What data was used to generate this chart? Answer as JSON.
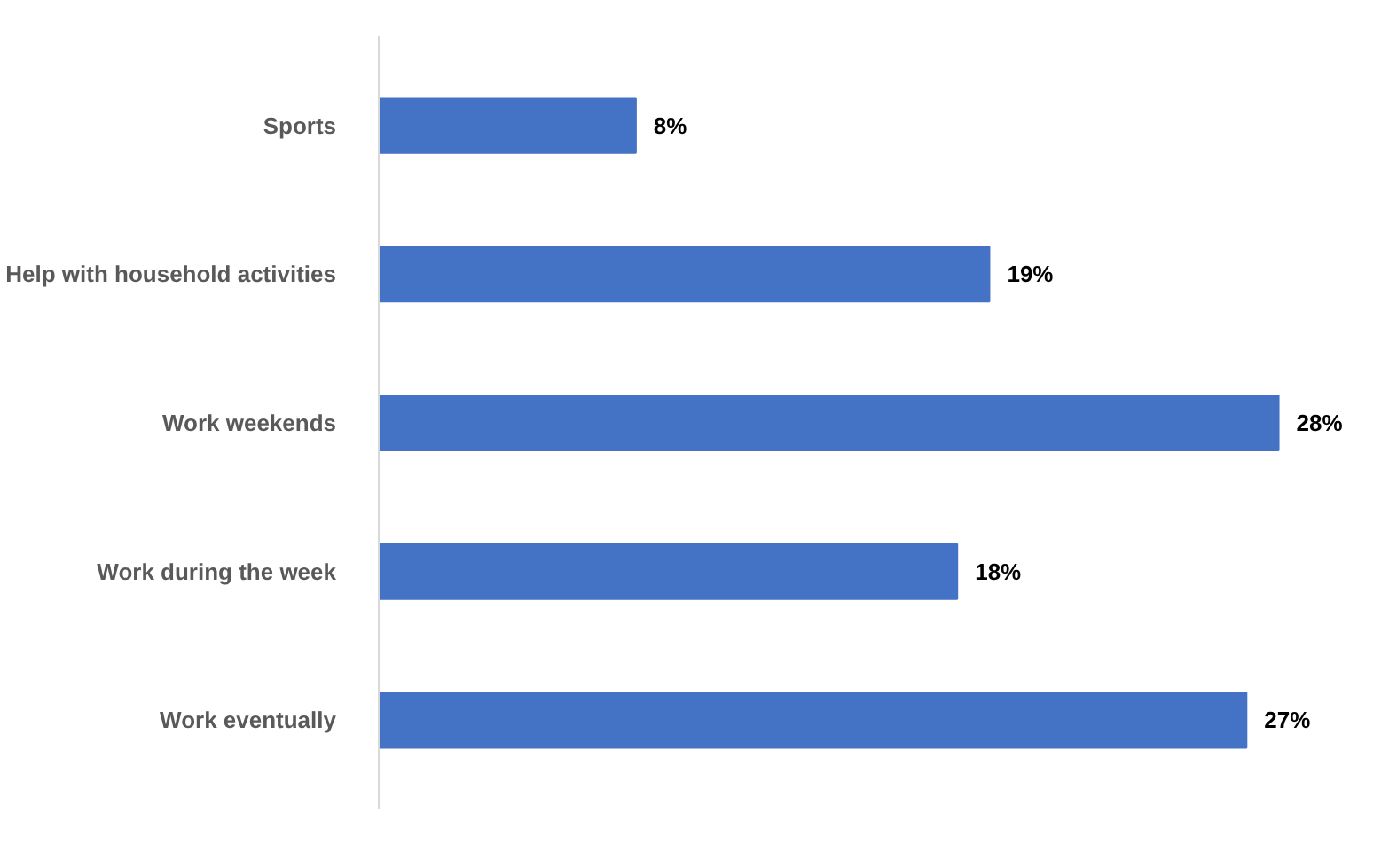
{
  "chart_data": {
    "type": "bar",
    "orientation": "horizontal",
    "categories": [
      "Sports",
      "Help with household activities",
      "Work weekends",
      "Work during the week",
      "Work eventually"
    ],
    "values": [
      8,
      19,
      28,
      18,
      27
    ],
    "value_labels": [
      "8%",
      "19%",
      "28%",
      "18%",
      "27%"
    ],
    "color": "#4472c4"
  }
}
